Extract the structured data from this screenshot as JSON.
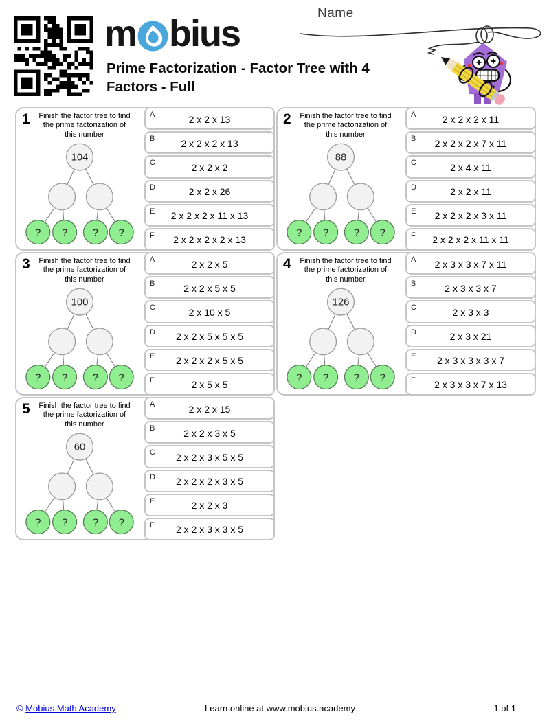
{
  "header": {
    "logo": {
      "part1": "m",
      "part2": "bius",
      "o_icon": "sphere-swirl-icon",
      "brand_blue": "#49A7DB"
    },
    "title": "Prime Factorization - Factor Tree with 4 Factors - Full",
    "name_label": "Name",
    "qr_icon": "qr-code",
    "mascot_icon": "pencil-mascot"
  },
  "instruction": "Finish the factor tree to find the prime factorization of this number",
  "tree": {
    "leaf_symbol": "?",
    "leaf_green": "#90EE90",
    "node_gray": "#f2f2f2"
  },
  "problems": [
    {
      "number": "1",
      "root": "104",
      "answers": [
        {
          "label": "A",
          "value": "2 x 2 x 13"
        },
        {
          "label": "B",
          "value": "2 x 2 x 2 x 13"
        },
        {
          "label": "C",
          "value": "2 x 2 x 2"
        },
        {
          "label": "D",
          "value": "2 x 2 x 26"
        },
        {
          "label": "E",
          "value": "2 x 2 x 2 x 11 x 13"
        },
        {
          "label": "F",
          "value": "2 x 2 x 2 x 2 x 13"
        }
      ]
    },
    {
      "number": "2",
      "root": "88",
      "answers": [
        {
          "label": "A",
          "value": "2 x 2 x 2 x 11"
        },
        {
          "label": "B",
          "value": "2 x 2 x 2 x 7 x 11"
        },
        {
          "label": "C",
          "value": "2 x 4 x 11"
        },
        {
          "label": "D",
          "value": "2 x 2 x 11"
        },
        {
          "label": "E",
          "value": "2 x 2 x 2 x 3 x 11"
        },
        {
          "label": "F",
          "value": "2 x 2 x 2 x 11 x 11"
        }
      ]
    },
    {
      "number": "3",
      "root": "100",
      "answers": [
        {
          "label": "A",
          "value": "2 x 2 x 5"
        },
        {
          "label": "B",
          "value": "2 x 2 x 5 x 5"
        },
        {
          "label": "C",
          "value": "2 x 10 x 5"
        },
        {
          "label": "D",
          "value": "2 x 2 x 5 x 5 x 5"
        },
        {
          "label": "E",
          "value": "2 x 2 x 2 x 5 x 5"
        },
        {
          "label": "F",
          "value": "2 x 5 x 5"
        }
      ]
    },
    {
      "number": "4",
      "root": "126",
      "answers": [
        {
          "label": "A",
          "value": "2 x 3 x 3 x 7 x 11"
        },
        {
          "label": "B",
          "value": "2 x 3 x 3 x 7"
        },
        {
          "label": "C",
          "value": "2 x 3 x 3"
        },
        {
          "label": "D",
          "value": "2 x 3 x 21"
        },
        {
          "label": "E",
          "value": "2 x 3 x 3 x 3 x 7"
        },
        {
          "label": "F",
          "value": "2 x 3 x 3 x 7 x 13"
        }
      ]
    },
    {
      "number": "5",
      "root": "60",
      "answers": [
        {
          "label": "A",
          "value": "2 x 2 x 15"
        },
        {
          "label": "B",
          "value": "2 x 2 x 3 x 5"
        },
        {
          "label": "C",
          "value": "2 x 2 x 3 x 5 x 5"
        },
        {
          "label": "D",
          "value": "2 x 2 x 2 x 3 x 5"
        },
        {
          "label": "E",
          "value": "2 x 2 x 3"
        },
        {
          "label": "F",
          "value": "2 x 2 x 3 x 3 x 5"
        }
      ]
    }
  ],
  "footer": {
    "copyright": "©",
    "link_text": "Mobius Math Academy",
    "center_text": "Learn online at www.mobius.academy",
    "page_indicator": "1 of 1"
  }
}
